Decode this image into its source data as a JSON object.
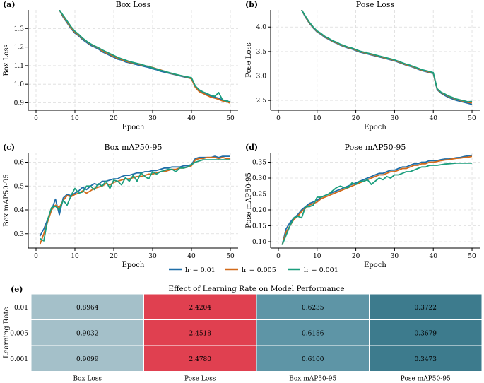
{
  "series_names": [
    "lr = 0.01",
    "lr = 0.005",
    "lr = 0.001"
  ],
  "colors": {
    "lr001": "#1f6ea8",
    "lr0005": "#d26a1a",
    "lr0001": "#1a9e7d",
    "heat_low": "#a4c0c9",
    "heat_mid": "#5e95a6",
    "heat_high": "#3d7b8d",
    "heat_hot": "#e04050"
  },
  "chart_data": [
    {
      "type": "line",
      "label": "(a)",
      "title": "Box Loss",
      "xlabel": "Epoch",
      "ylabel": "Box Loss",
      "xlim": [
        -2,
        52
      ],
      "ylim": [
        0.86,
        1.4
      ],
      "xticks": [
        0,
        10,
        20,
        30,
        40,
        50
      ],
      "yticks": [
        0.9,
        1.0,
        1.1,
        1.2,
        1.3
      ],
      "yformat": 1,
      "x": [
        6,
        7,
        8,
        9,
        10,
        11,
        12,
        13,
        14,
        15,
        16,
        17,
        18,
        19,
        20,
        21,
        22,
        23,
        24,
        25,
        26,
        27,
        28,
        29,
        30,
        31,
        32,
        33,
        34,
        35,
        36,
        37,
        38,
        39,
        40,
        41,
        42,
        43,
        44,
        45,
        46,
        47,
        48,
        49,
        50
      ],
      "series": [
        {
          "name": "lr = 0.01",
          "values": [
            1.4,
            1.36,
            1.33,
            1.3,
            1.275,
            1.26,
            1.24,
            1.225,
            1.21,
            1.2,
            1.19,
            1.175,
            1.165,
            1.155,
            1.145,
            1.135,
            1.13,
            1.12,
            1.115,
            1.11,
            1.105,
            1.1,
            1.095,
            1.09,
            1.083,
            1.078,
            1.07,
            1.065,
            1.06,
            1.055,
            1.05,
            1.045,
            1.04,
            1.035,
            1.03,
            0.985,
            0.965,
            0.955,
            0.945,
            0.935,
            0.93,
            0.925,
            0.915,
            0.91,
            0.905
          ]
        },
        {
          "name": "lr = 0.005",
          "values": [
            1.4,
            1.365,
            1.335,
            1.305,
            1.28,
            1.265,
            1.245,
            1.23,
            1.215,
            1.205,
            1.195,
            1.18,
            1.17,
            1.16,
            1.15,
            1.14,
            1.133,
            1.125,
            1.118,
            1.115,
            1.11,
            1.105,
            1.1,
            1.095,
            1.09,
            1.083,
            1.077,
            1.07,
            1.063,
            1.057,
            1.052,
            1.047,
            1.042,
            1.038,
            1.028,
            0.983,
            0.96,
            0.95,
            0.94,
            0.93,
            0.925,
            0.918,
            0.91,
            0.905,
            0.898
          ]
        },
        {
          "name": "lr = 0.001",
          "values": [
            1.4,
            1.37,
            1.34,
            1.31,
            1.285,
            1.268,
            1.248,
            1.232,
            1.218,
            1.207,
            1.197,
            1.185,
            1.175,
            1.165,
            1.155,
            1.145,
            1.137,
            1.13,
            1.122,
            1.117,
            1.112,
            1.107,
            1.1,
            1.095,
            1.088,
            1.082,
            1.075,
            1.07,
            1.064,
            1.058,
            1.053,
            1.048,
            1.043,
            1.039,
            1.035,
            0.99,
            0.97,
            0.958,
            0.95,
            0.94,
            0.935,
            0.955,
            0.915,
            0.91,
            0.903
          ]
        }
      ]
    },
    {
      "type": "line",
      "label": "(b)",
      "title": "Pose Loss",
      "xlabel": "Epoch",
      "ylabel": "Pose Loss",
      "xlim": [
        -2,
        52
      ],
      "ylim": [
        2.3,
        4.35
      ],
      "xticks": [
        0,
        10,
        20,
        30,
        40,
        50
      ],
      "yticks": [
        2.5,
        3.0,
        3.5,
        4.0
      ],
      "yformat": 1,
      "x": [
        6,
        7,
        8,
        9,
        10,
        11,
        12,
        13,
        14,
        15,
        16,
        17,
        18,
        19,
        20,
        21,
        22,
        23,
        24,
        25,
        26,
        27,
        28,
        29,
        30,
        31,
        32,
        33,
        34,
        35,
        36,
        37,
        38,
        39,
        40,
        41,
        42,
        43,
        44,
        45,
        46,
        47,
        48,
        49,
        50
      ],
      "series": [
        {
          "name": "lr = 0.01",
          "values": [
            4.35,
            4.2,
            4.08,
            3.98,
            3.9,
            3.85,
            3.79,
            3.75,
            3.7,
            3.67,
            3.63,
            3.6,
            3.57,
            3.55,
            3.52,
            3.49,
            3.47,
            3.45,
            3.43,
            3.41,
            3.39,
            3.37,
            3.35,
            3.33,
            3.31,
            3.28,
            3.25,
            3.22,
            3.2,
            3.17,
            3.14,
            3.11,
            3.09,
            3.07,
            3.05,
            2.72,
            2.65,
            2.6,
            2.56,
            2.53,
            2.5,
            2.48,
            2.46,
            2.44,
            2.42
          ]
        },
        {
          "name": "lr = 0.005",
          "values": [
            4.35,
            4.21,
            4.09,
            3.99,
            3.91,
            3.86,
            3.8,
            3.76,
            3.71,
            3.68,
            3.64,
            3.61,
            3.58,
            3.56,
            3.53,
            3.5,
            3.48,
            3.46,
            3.44,
            3.42,
            3.4,
            3.38,
            3.36,
            3.34,
            3.32,
            3.29,
            3.26,
            3.23,
            3.21,
            3.18,
            3.15,
            3.12,
            3.1,
            3.08,
            3.06,
            2.73,
            2.66,
            2.62,
            2.58,
            2.55,
            2.52,
            2.5,
            2.48,
            2.46,
            2.45
          ]
        },
        {
          "name": "lr = 0.001",
          "values": [
            4.35,
            4.22,
            4.1,
            4.0,
            3.92,
            3.87,
            3.81,
            3.77,
            3.72,
            3.69,
            3.65,
            3.62,
            3.59,
            3.57,
            3.54,
            3.51,
            3.49,
            3.47,
            3.45,
            3.43,
            3.41,
            3.39,
            3.37,
            3.35,
            3.33,
            3.3,
            3.27,
            3.24,
            3.22,
            3.19,
            3.16,
            3.13,
            3.11,
            3.09,
            3.07,
            2.74,
            2.67,
            2.63,
            2.59,
            2.56,
            2.53,
            2.51,
            2.49,
            2.47,
            2.48
          ]
        }
      ]
    },
    {
      "type": "line",
      "label": "(c)",
      "title": "Box mAP50-95",
      "xlabel": "Epoch",
      "ylabel": "Box mAP50-95",
      "xlim": [
        -2,
        52
      ],
      "ylim": [
        0.24,
        0.64
      ],
      "xticks": [
        0,
        10,
        20,
        30,
        40,
        50
      ],
      "yticks": [
        0.3,
        0.4,
        0.5,
        0.6
      ],
      "yformat": 1,
      "x": [
        1,
        2,
        3,
        4,
        5,
        6,
        7,
        8,
        9,
        10,
        11,
        12,
        13,
        14,
        15,
        16,
        17,
        18,
        19,
        20,
        21,
        22,
        23,
        24,
        25,
        26,
        27,
        28,
        29,
        30,
        31,
        32,
        33,
        34,
        35,
        36,
        37,
        38,
        39,
        40,
        41,
        42,
        43,
        44,
        45,
        46,
        47,
        48,
        49,
        50
      ],
      "series": [
        {
          "name": "lr = 0.01",
          "values": [
            0.29,
            0.32,
            0.36,
            0.4,
            0.445,
            0.38,
            0.45,
            0.465,
            0.46,
            0.47,
            0.48,
            0.495,
            0.485,
            0.5,
            0.51,
            0.505,
            0.52,
            0.52,
            0.525,
            0.53,
            0.53,
            0.54,
            0.545,
            0.545,
            0.55,
            0.555,
            0.555,
            0.56,
            0.56,
            0.565,
            0.565,
            0.57,
            0.575,
            0.575,
            0.58,
            0.58,
            0.58,
            0.585,
            0.585,
            0.59,
            0.615,
            0.62,
            0.62,
            0.62,
            0.62,
            0.625,
            0.62,
            0.625,
            0.625,
            0.625
          ]
        },
        {
          "name": "lr = 0.005",
          "values": [
            0.255,
            0.3,
            0.35,
            0.4,
            0.42,
            0.41,
            0.44,
            0.46,
            0.455,
            0.465,
            0.47,
            0.48,
            0.47,
            0.48,
            0.49,
            0.495,
            0.5,
            0.51,
            0.505,
            0.515,
            0.52,
            0.525,
            0.53,
            0.53,
            0.535,
            0.54,
            0.54,
            0.545,
            0.55,
            0.55,
            0.555,
            0.56,
            0.56,
            0.565,
            0.57,
            0.57,
            0.575,
            0.575,
            0.58,
            0.585,
            0.61,
            0.615,
            0.615,
            0.62,
            0.62,
            0.62,
            0.615,
            0.62,
            0.615,
            0.615
          ]
        },
        {
          "name": "lr = 0.001",
          "values": [
            0.28,
            0.27,
            0.36,
            0.41,
            0.415,
            0.4,
            0.44,
            0.42,
            0.46,
            0.49,
            0.47,
            0.475,
            0.5,
            0.5,
            0.485,
            0.51,
            0.5,
            0.52,
            0.49,
            0.525,
            0.52,
            0.505,
            0.535,
            0.52,
            0.545,
            0.52,
            0.555,
            0.54,
            0.53,
            0.56,
            0.55,
            0.56,
            0.565,
            0.57,
            0.57,
            0.56,
            0.575,
            0.575,
            0.58,
            0.59,
            0.6,
            0.605,
            0.61,
            0.61,
            0.61,
            0.61,
            0.61,
            0.61,
            0.61,
            0.61
          ]
        }
      ]
    },
    {
      "type": "line",
      "label": "(d)",
      "title": "Pose mAP50-95",
      "xlabel": "Epoch",
      "ylabel": "Pose mAP50-95",
      "xlim": [
        -2,
        52
      ],
      "ylim": [
        0.08,
        0.38
      ],
      "xticks": [
        0,
        10,
        20,
        30,
        40,
        50
      ],
      "yticks": [
        0.1,
        0.15,
        0.2,
        0.25,
        0.3,
        0.35
      ],
      "yformat": 2,
      "x": [
        1,
        2,
        3,
        4,
        5,
        6,
        7,
        8,
        9,
        10,
        11,
        12,
        13,
        14,
        15,
        16,
        17,
        18,
        19,
        20,
        21,
        22,
        23,
        24,
        25,
        26,
        27,
        28,
        29,
        30,
        31,
        32,
        33,
        34,
        35,
        36,
        37,
        38,
        39,
        40,
        41,
        42,
        43,
        44,
        45,
        46,
        47,
        48,
        49,
        50
      ],
      "series": [
        {
          "name": "lr = 0.01",
          "values": [
            0.09,
            0.14,
            0.16,
            0.175,
            0.185,
            0.2,
            0.21,
            0.22,
            0.225,
            0.23,
            0.24,
            0.245,
            0.25,
            0.255,
            0.26,
            0.265,
            0.27,
            0.275,
            0.28,
            0.285,
            0.29,
            0.295,
            0.3,
            0.305,
            0.31,
            0.315,
            0.315,
            0.32,
            0.325,
            0.325,
            0.33,
            0.335,
            0.335,
            0.34,
            0.345,
            0.345,
            0.35,
            0.35,
            0.355,
            0.355,
            0.355,
            0.358,
            0.36,
            0.36,
            0.362,
            0.364,
            0.365,
            0.368,
            0.37,
            0.372
          ]
        },
        {
          "name": "lr = 0.005",
          "values": [
            0.09,
            0.13,
            0.15,
            0.17,
            0.18,
            0.195,
            0.205,
            0.215,
            0.22,
            0.225,
            0.235,
            0.24,
            0.245,
            0.25,
            0.255,
            0.26,
            0.265,
            0.27,
            0.275,
            0.28,
            0.285,
            0.29,
            0.295,
            0.3,
            0.305,
            0.31,
            0.31,
            0.315,
            0.32,
            0.32,
            0.325,
            0.33,
            0.33,
            0.335,
            0.34,
            0.34,
            0.345,
            0.345,
            0.35,
            0.35,
            0.352,
            0.355,
            0.357,
            0.358,
            0.36,
            0.362,
            0.363,
            0.365,
            0.366,
            0.368
          ]
        },
        {
          "name": "lr = 0.001",
          "values": [
            0.09,
            0.12,
            0.15,
            0.175,
            0.18,
            0.175,
            0.21,
            0.21,
            0.215,
            0.24,
            0.24,
            0.245,
            0.25,
            0.26,
            0.27,
            0.275,
            0.27,
            0.27,
            0.285,
            0.28,
            0.29,
            0.29,
            0.295,
            0.28,
            0.29,
            0.3,
            0.295,
            0.305,
            0.3,
            0.31,
            0.31,
            0.315,
            0.32,
            0.32,
            0.325,
            0.33,
            0.335,
            0.335,
            0.34,
            0.34,
            0.34,
            0.342,
            0.344,
            0.345,
            0.346,
            0.347,
            0.347,
            0.347,
            0.347,
            0.347
          ]
        }
      ]
    },
    {
      "type": "heatmap",
      "label": "(e)",
      "title": "Effect of Learning Rate on Model Performance",
      "ylabel": "Learning Rate",
      "columns": [
        "Box Loss",
        "Pose Loss",
        "Box mAP50-95",
        "Pose mAP50-95"
      ],
      "rows": [
        "0.01",
        "0.005",
        "0.001"
      ],
      "values": [
        [
          0.8964,
          2.4204,
          0.6235,
          0.3722
        ],
        [
          0.9032,
          2.4518,
          0.6186,
          0.3679
        ],
        [
          0.9099,
          2.478,
          0.61,
          0.3473
        ]
      ],
      "cell_text": [
        [
          "0.8964",
          "2.4204",
          "0.6235",
          "0.3722"
        ],
        [
          "0.9032",
          "2.4518",
          "0.6186",
          "0.3679"
        ],
        [
          "0.9099",
          "2.4780",
          "0.6100",
          "0.3473"
        ]
      ]
    }
  ]
}
